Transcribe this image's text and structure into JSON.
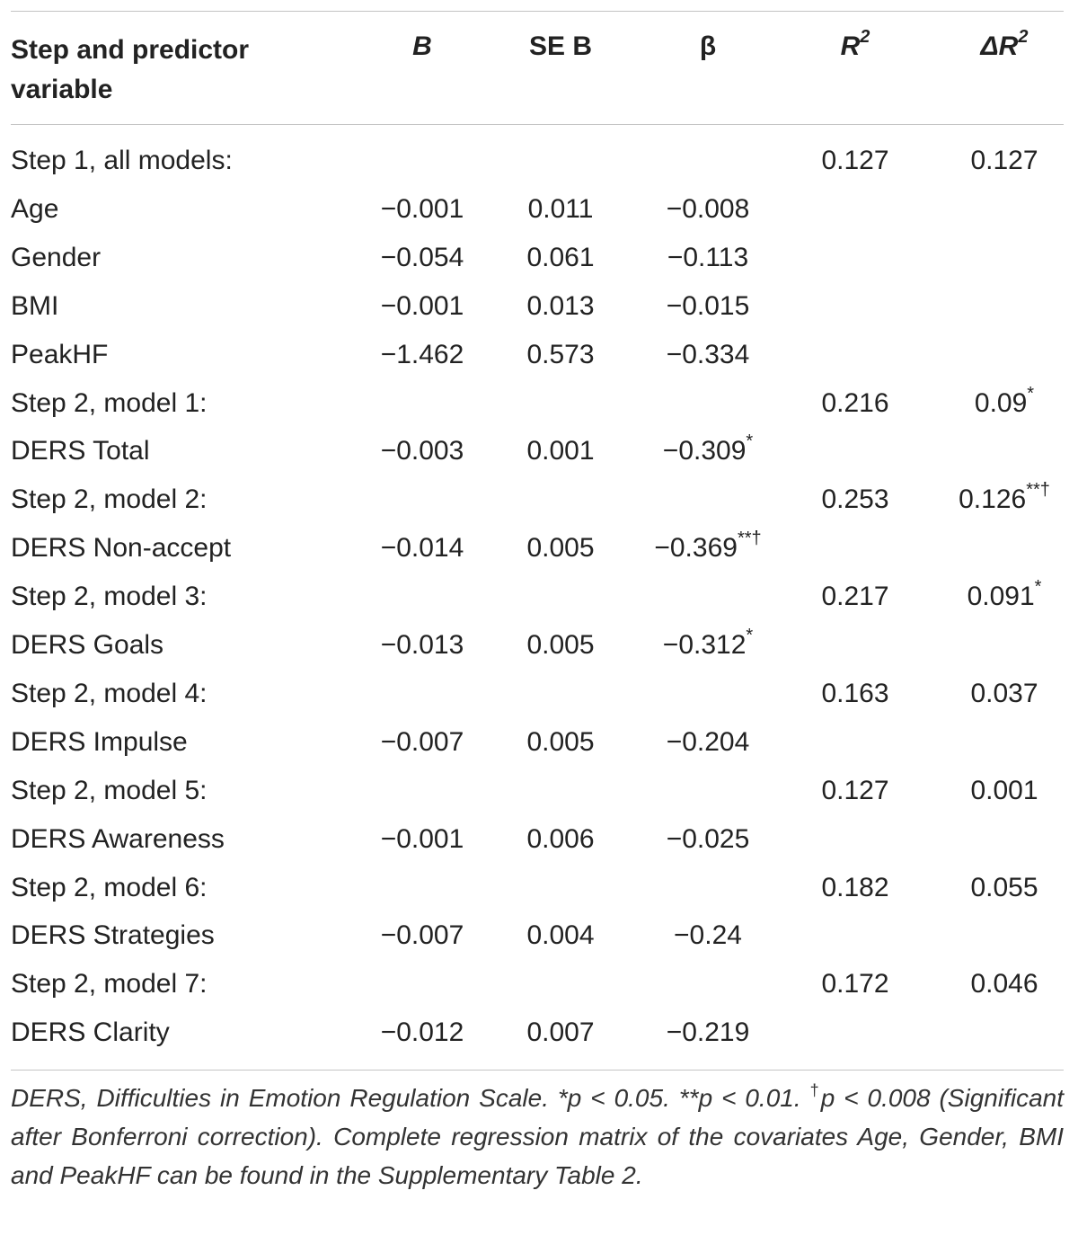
{
  "table": {
    "headers": {
      "label": "Step and predictor variable",
      "b": "B",
      "se_b": "SE B",
      "beta": "β",
      "r2": "R",
      "r2_sup": "2",
      "delta_r2": "ΔR",
      "delta_r2_sup": "2"
    },
    "rows": [
      {
        "label": "Step 1, all models:",
        "b": "",
        "se": "",
        "beta": "",
        "beta_mark": "",
        "r2": "0.127",
        "dr2": "0.127",
        "dr2_mark": ""
      },
      {
        "label": "Age",
        "b": "−0.001",
        "se": "0.011",
        "beta": "−0.008",
        "beta_mark": "",
        "r2": "",
        "dr2": "",
        "dr2_mark": ""
      },
      {
        "label": "Gender",
        "b": "−0.054",
        "se": "0.061",
        "beta": "−0.113",
        "beta_mark": "",
        "r2": "",
        "dr2": "",
        "dr2_mark": ""
      },
      {
        "label": "BMI",
        "b": "−0.001",
        "se": "0.013",
        "beta": "−0.015",
        "beta_mark": "",
        "r2": "",
        "dr2": "",
        "dr2_mark": ""
      },
      {
        "label": "PeakHF",
        "b": "−1.462",
        "se": "0.573",
        "beta": "−0.334",
        "beta_mark": "",
        "r2": "",
        "dr2": "",
        "dr2_mark": ""
      },
      {
        "label": "Step 2, model 1:",
        "b": "",
        "se": "",
        "beta": "",
        "beta_mark": "",
        "r2": "0.216",
        "dr2": "0.09",
        "dr2_mark": "*"
      },
      {
        "label": "DERS Total",
        "b": "−0.003",
        "se": "0.001",
        "beta": "−0.309",
        "beta_mark": "*",
        "r2": "",
        "dr2": "",
        "dr2_mark": ""
      },
      {
        "label": "Step 2, model 2:",
        "b": "",
        "se": "",
        "beta": "",
        "beta_mark": "",
        "r2": "0.253",
        "dr2": "0.126",
        "dr2_mark": "**†"
      },
      {
        "label": "DERS Non-accept",
        "b": "−0.014",
        "se": "0.005",
        "beta": "−0.369",
        "beta_mark": "**†",
        "r2": "",
        "dr2": "",
        "dr2_mark": ""
      },
      {
        "label": "Step 2, model 3:",
        "b": "",
        "se": "",
        "beta": "",
        "beta_mark": "",
        "r2": "0.217",
        "dr2": "0.091",
        "dr2_mark": "*"
      },
      {
        "label": "DERS Goals",
        "b": "−0.013",
        "se": "0.005",
        "beta": "−0.312",
        "beta_mark": "*",
        "r2": "",
        "dr2": "",
        "dr2_mark": ""
      },
      {
        "label": "Step 2, model 4:",
        "b": "",
        "se": "",
        "beta": "",
        "beta_mark": "",
        "r2": "0.163",
        "dr2": "0.037",
        "dr2_mark": ""
      },
      {
        "label": "DERS Impulse",
        "b": "−0.007",
        "se": "0.005",
        "beta": "−0.204",
        "beta_mark": "",
        "r2": "",
        "dr2": "",
        "dr2_mark": ""
      },
      {
        "label": "Step 2, model 5:",
        "b": "",
        "se": "",
        "beta": "",
        "beta_mark": "",
        "r2": "0.127",
        "dr2": "0.001",
        "dr2_mark": ""
      },
      {
        "label": "DERS Awareness",
        "b": "−0.001",
        "se": "0.006",
        "beta": "−0.025",
        "beta_mark": "",
        "r2": "",
        "dr2": "",
        "dr2_mark": ""
      },
      {
        "label": "Step 2, model 6:",
        "b": "",
        "se": "",
        "beta": "",
        "beta_mark": "",
        "r2": "0.182",
        "dr2": "0.055",
        "dr2_mark": ""
      },
      {
        "label": "DERS Strategies",
        "b": "−0.007",
        "se": "0.004",
        "beta": "−0.24",
        "beta_mark": "",
        "r2": "",
        "dr2": "",
        "dr2_mark": ""
      },
      {
        "label": "Step 2, model 7:",
        "b": "",
        "se": "",
        "beta": "",
        "beta_mark": "",
        "r2": "0.172",
        "dr2": "0.046",
        "dr2_mark": ""
      },
      {
        "label": "DERS Clarity",
        "b": "−0.012",
        "se": "0.007",
        "beta": "−0.219",
        "beta_mark": "",
        "r2": "",
        "dr2": "",
        "dr2_mark": ""
      }
    ]
  },
  "footnote": {
    "line1": "DERS, Difficulties in Emotion Regulation Scale. *p < 0.05. **p < 0.01.",
    "dagger": "†",
    "line2": "p < 0.008 (Significant after Bonferroni correction). Complete regression matrix of the covariates Age, Gender, BMI and PeakHF can be found in the Supplementary Table 2."
  }
}
